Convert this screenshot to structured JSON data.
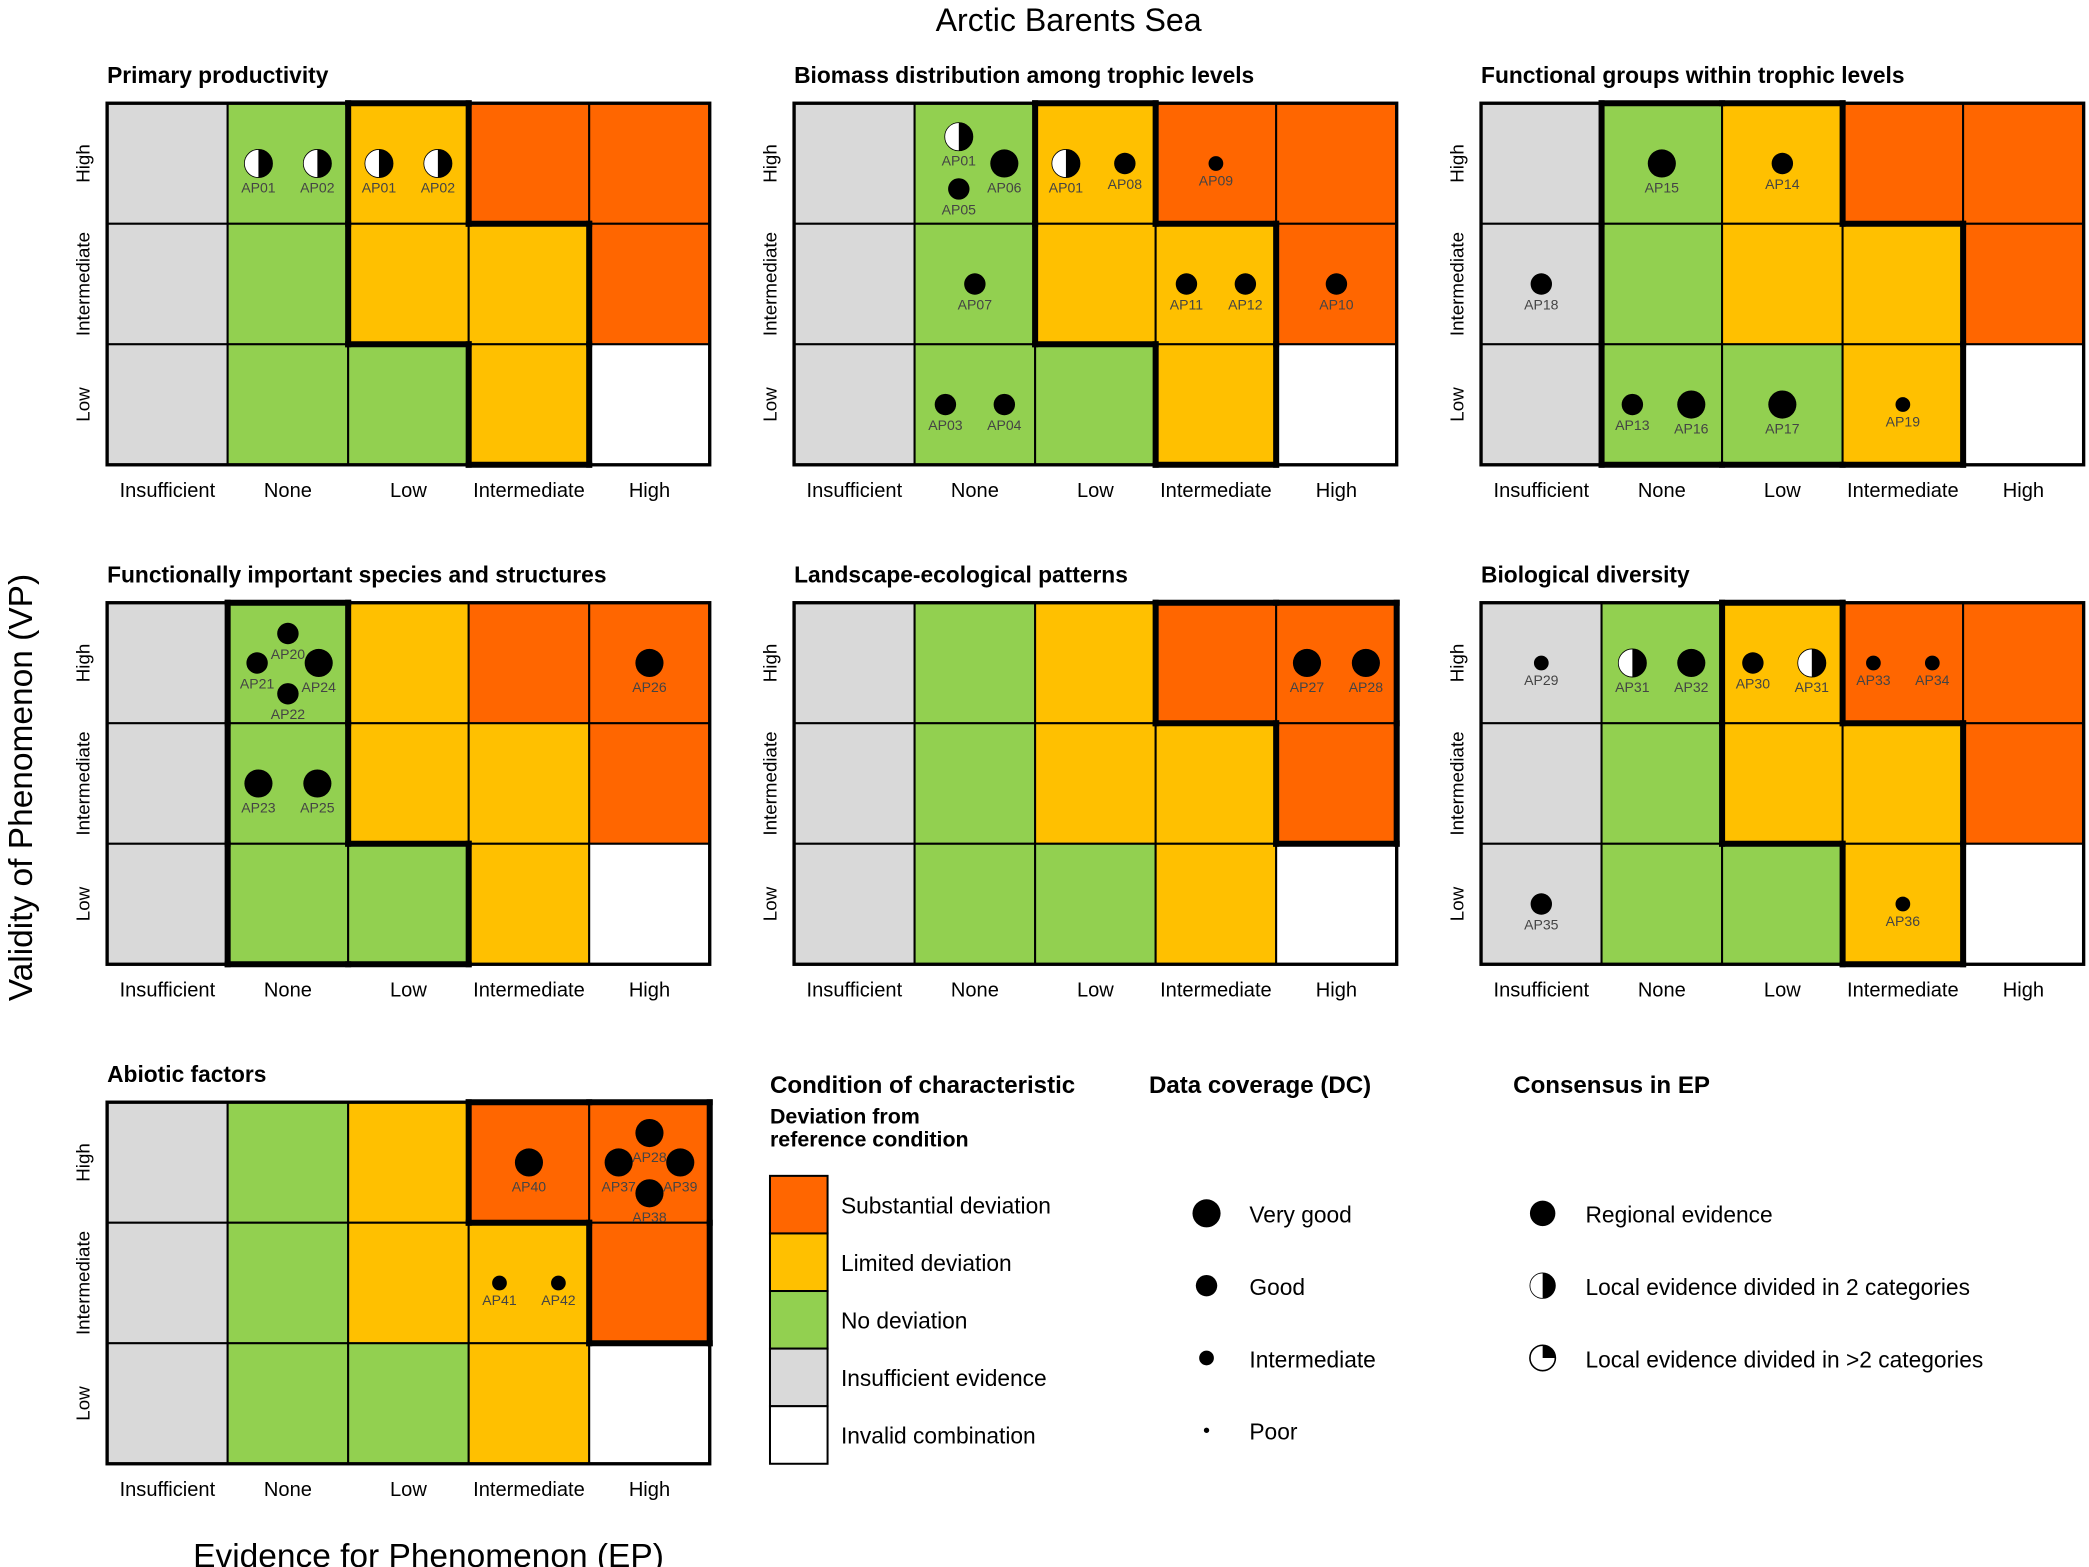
{
  "title": "Arctic Barents Sea",
  "xlabel": "Evidence for Phenomenon (EP)",
  "ylabel": "Validity of Phenomenon (VP)",
  "colors": {
    "substantial": "#FF6600",
    "limited": "#FFC000",
    "no": "#92D050",
    "insufficient": "#D9D9D9",
    "invalid": "#FFFFFF"
  },
  "chart_data": {
    "type": "heatmap",
    "ep_categories": [
      "Insufficient",
      "None",
      "Low",
      "Intermediate",
      "High"
    ],
    "vp_categories": [
      "High",
      "Intermediate",
      "Low"
    ],
    "condition_matrix": [
      [
        "insufficient",
        "no",
        "limited",
        "substantial",
        "substantial"
      ],
      [
        "insufficient",
        "no",
        "limited",
        "limited",
        "substantial"
      ],
      [
        "insufficient",
        "no",
        "no",
        "limited",
        "invalid"
      ]
    ],
    "panels": [
      {
        "title": "Primary productivity",
        "outlined": [
          "limited"
        ],
        "points": [
          {
            "label": "AP01",
            "ep": "None",
            "vp": "High",
            "dc": "very-good",
            "consensus": "local-2"
          },
          {
            "label": "AP02",
            "ep": "None",
            "vp": "High",
            "dc": "very-good",
            "consensus": "local-2"
          },
          {
            "label": "AP01",
            "ep": "Low",
            "vp": "High",
            "dc": "very-good",
            "consensus": "local-2"
          },
          {
            "label": "AP02",
            "ep": "Low",
            "vp": "High",
            "dc": "very-good",
            "consensus": "local-2"
          }
        ]
      },
      {
        "title": "Biomass distribution among trophic levels",
        "outlined": [
          "limited"
        ],
        "points": [
          {
            "label": "AP01",
            "ep": "None",
            "vp": "High",
            "dc": "very-good",
            "consensus": "local-2"
          },
          {
            "label": "AP05",
            "ep": "None",
            "vp": "High",
            "dc": "good",
            "consensus": "regional"
          },
          {
            "label": "AP06",
            "ep": "None",
            "vp": "High",
            "dc": "very-good",
            "consensus": "regional"
          },
          {
            "label": "AP01",
            "ep": "Low",
            "vp": "High",
            "dc": "very-good",
            "consensus": "local-2"
          },
          {
            "label": "AP08",
            "ep": "Low",
            "vp": "High",
            "dc": "good",
            "consensus": "regional"
          },
          {
            "label": "AP09",
            "ep": "Intermediate",
            "vp": "High",
            "dc": "intermediate",
            "consensus": "regional"
          },
          {
            "label": "AP07",
            "ep": "None",
            "vp": "Intermediate",
            "dc": "good",
            "consensus": "regional"
          },
          {
            "label": "AP11",
            "ep": "Intermediate",
            "vp": "Intermediate",
            "dc": "good",
            "consensus": "regional"
          },
          {
            "label": "AP12",
            "ep": "Intermediate",
            "vp": "Intermediate",
            "dc": "good",
            "consensus": "regional"
          },
          {
            "label": "AP10",
            "ep": "High",
            "vp": "Intermediate",
            "dc": "good",
            "consensus": "regional"
          },
          {
            "label": "AP03",
            "ep": "None",
            "vp": "Low",
            "dc": "good",
            "consensus": "regional"
          },
          {
            "label": "AP04",
            "ep": "None",
            "vp": "Low",
            "dc": "good",
            "consensus": "regional"
          }
        ]
      },
      {
        "title": "Functional groups within trophic levels",
        "outlined": [
          "no",
          "limited"
        ],
        "points": [
          {
            "label": "AP15",
            "ep": "None",
            "vp": "High",
            "dc": "very-good",
            "consensus": "regional"
          },
          {
            "label": "AP14",
            "ep": "Low",
            "vp": "High",
            "dc": "good",
            "consensus": "regional"
          },
          {
            "label": "AP18",
            "ep": "Insufficient",
            "vp": "Intermediate",
            "dc": "good",
            "consensus": "regional"
          },
          {
            "label": "AP13",
            "ep": "None",
            "vp": "Low",
            "dc": "good",
            "consensus": "regional"
          },
          {
            "label": "AP16",
            "ep": "None",
            "vp": "Low",
            "dc": "very-good",
            "consensus": "regional"
          },
          {
            "label": "AP17",
            "ep": "Low",
            "vp": "Low",
            "dc": "very-good",
            "consensus": "regional"
          },
          {
            "label": "AP19",
            "ep": "Intermediate",
            "vp": "Low",
            "dc": "intermediate",
            "consensus": "regional"
          }
        ]
      },
      {
        "title": "Functionally important species and structures",
        "outlined": [
          "no"
        ],
        "points": [
          {
            "label": "AP20",
            "ep": "None",
            "vp": "High",
            "dc": "good",
            "consensus": "regional"
          },
          {
            "label": "AP21",
            "ep": "None",
            "vp": "High",
            "dc": "good",
            "consensus": "regional"
          },
          {
            "label": "AP24",
            "ep": "None",
            "vp": "High",
            "dc": "very-good",
            "consensus": "regional"
          },
          {
            "label": "AP22",
            "ep": "None",
            "vp": "High",
            "dc": "good",
            "consensus": "regional"
          },
          {
            "label": "AP26",
            "ep": "High",
            "vp": "High",
            "dc": "very-good",
            "consensus": "regional"
          },
          {
            "label": "AP23",
            "ep": "None",
            "vp": "Intermediate",
            "dc": "very-good",
            "consensus": "regional"
          },
          {
            "label": "AP25",
            "ep": "None",
            "vp": "Intermediate",
            "dc": "very-good",
            "consensus": "regional"
          }
        ]
      },
      {
        "title": "Landscape-ecological patterns",
        "outlined": [
          "substantial"
        ],
        "points": [
          {
            "label": "AP27",
            "ep": "High",
            "vp": "High",
            "dc": "very-good",
            "consensus": "regional"
          },
          {
            "label": "AP28",
            "ep": "High",
            "vp": "High",
            "dc": "very-good",
            "consensus": "regional"
          }
        ]
      },
      {
        "title": "Biological diversity",
        "outlined": [
          "limited"
        ],
        "points": [
          {
            "label": "AP29",
            "ep": "Insufficient",
            "vp": "High",
            "dc": "intermediate",
            "consensus": "regional"
          },
          {
            "label": "AP31",
            "ep": "None",
            "vp": "High",
            "dc": "very-good",
            "consensus": "local-2"
          },
          {
            "label": "AP32",
            "ep": "None",
            "vp": "High",
            "dc": "very-good",
            "consensus": "regional"
          },
          {
            "label": "AP30",
            "ep": "Low",
            "vp": "High",
            "dc": "good",
            "consensus": "regional"
          },
          {
            "label": "AP31",
            "ep": "Low",
            "vp": "High",
            "dc": "very-good",
            "consensus": "local-2"
          },
          {
            "label": "AP33",
            "ep": "Intermediate",
            "vp": "High",
            "dc": "intermediate",
            "consensus": "regional"
          },
          {
            "label": "AP34",
            "ep": "Intermediate",
            "vp": "High",
            "dc": "intermediate",
            "consensus": "regional"
          },
          {
            "label": "AP35",
            "ep": "Insufficient",
            "vp": "Low",
            "dc": "good",
            "consensus": "regional"
          },
          {
            "label": "AP36",
            "ep": "Intermediate",
            "vp": "Low",
            "dc": "intermediate",
            "consensus": "regional"
          }
        ]
      },
      {
        "title": "Abiotic factors",
        "outlined": [
          "substantial"
        ],
        "points": [
          {
            "label": "AP40",
            "ep": "Intermediate",
            "vp": "High",
            "dc": "very-good",
            "consensus": "regional"
          },
          {
            "label": "AP28",
            "ep": "High",
            "vp": "High",
            "dc": "very-good",
            "consensus": "regional"
          },
          {
            "label": "AP37",
            "ep": "High",
            "vp": "High",
            "dc": "very-good",
            "consensus": "regional"
          },
          {
            "label": "AP39",
            "ep": "High",
            "vp": "High",
            "dc": "very-good",
            "consensus": "regional"
          },
          {
            "label": "AP38",
            "ep": "High",
            "vp": "High",
            "dc": "very-good",
            "consensus": "regional"
          },
          {
            "label": "AP41",
            "ep": "Intermediate",
            "vp": "Intermediate",
            "dc": "intermediate",
            "consensus": "regional"
          },
          {
            "label": "AP42",
            "ep": "Intermediate",
            "vp": "Intermediate",
            "dc": "intermediate",
            "consensus": "regional"
          }
        ]
      }
    ]
  },
  "legend": {
    "condition": {
      "title": "Condition of characteristic",
      "subtitle_1": "Deviation from",
      "subtitle_2": "reference condition",
      "items": [
        {
          "key": "substantial",
          "label": "Substantial deviation"
        },
        {
          "key": "limited",
          "label": "Limited deviation"
        },
        {
          "key": "no",
          "label": "No deviation"
        },
        {
          "key": "insufficient",
          "label": "Insufficient evidence"
        },
        {
          "key": "invalid",
          "label": "Invalid combination"
        }
      ]
    },
    "data_coverage": {
      "title": "Data coverage (DC)",
      "items": [
        {
          "key": "very-good",
          "label": "Very good"
        },
        {
          "key": "good",
          "label": "Good"
        },
        {
          "key": "intermediate",
          "label": "Intermediate"
        },
        {
          "key": "poor",
          "label": "Poor"
        }
      ]
    },
    "consensus": {
      "title": "Consensus in EP",
      "items": [
        {
          "key": "regional",
          "label": "Regional evidence"
        },
        {
          "key": "local-2",
          "label": "Local evidence divided in 2 categories"
        },
        {
          "key": "local-many",
          "label": "Local evidence divided in >2 categories"
        }
      ]
    }
  }
}
